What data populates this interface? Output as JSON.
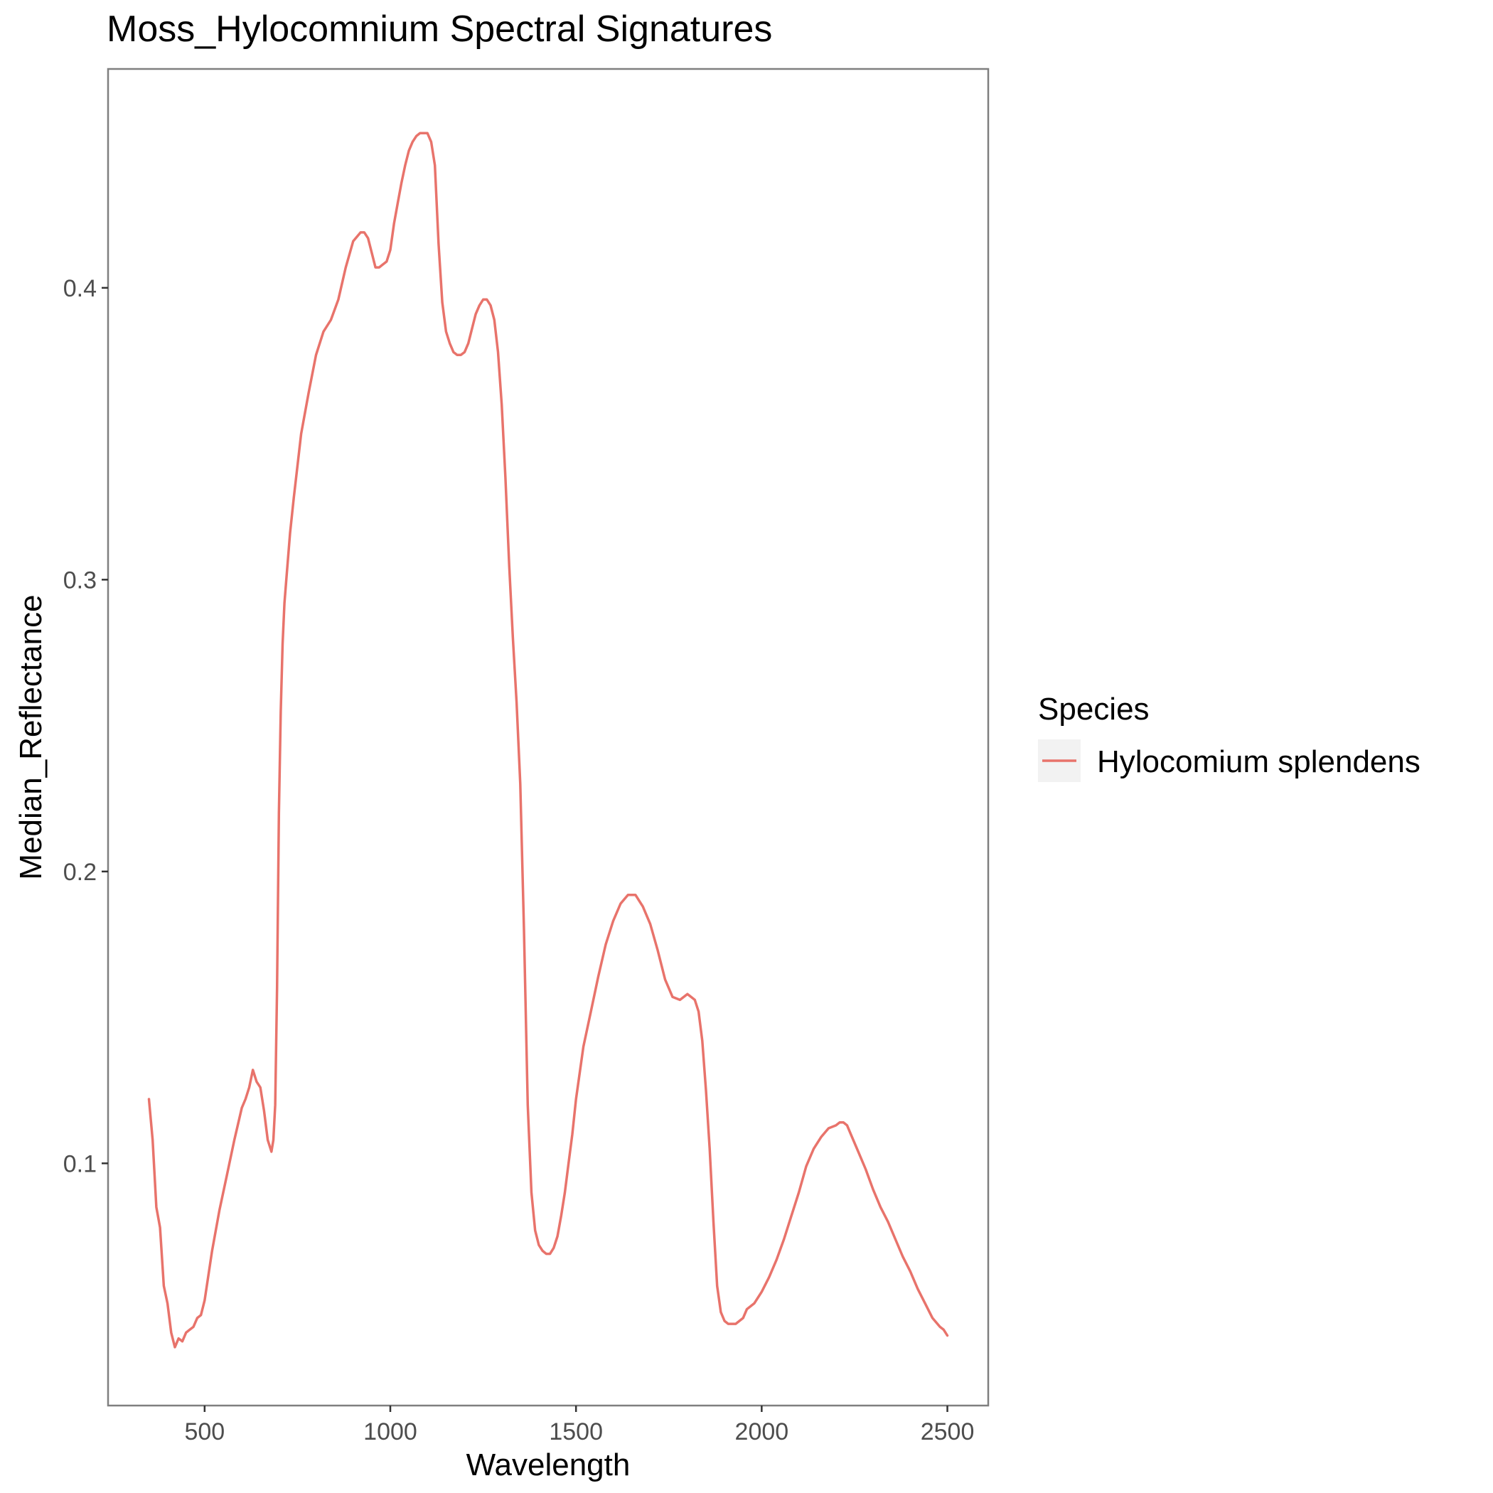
{
  "chart_data": {
    "type": "line",
    "title": "Moss_Hylocomnium Spectral Signatures",
    "xlabel": "Wavelength",
    "ylabel": "Median_Reflectance",
    "xlim": [
      240,
      2610
    ],
    "ylim": [
      0.017,
      0.475
    ],
    "x_ticks": [
      500,
      1000,
      1500,
      2000,
      2500
    ],
    "x_tick_labels": [
      "500",
      "1000",
      "1500",
      "2000",
      "2500"
    ],
    "y_ticks": [
      0.1,
      0.2,
      0.3,
      0.4
    ],
    "y_tick_labels": [
      "0.1",
      "0.2",
      "0.3",
      "0.4"
    ],
    "grid": false,
    "legend": {
      "title": "Species",
      "position": "right"
    },
    "series": [
      {
        "name": "Hylocomium splendens",
        "color": "#e8736b",
        "x": [
          350,
          360,
          370,
          380,
          390,
          400,
          410,
          420,
          430,
          440,
          450,
          460,
          470,
          480,
          490,
          500,
          520,
          540,
          560,
          580,
          600,
          610,
          620,
          630,
          640,
          650,
          660,
          670,
          680,
          685,
          690,
          695,
          700,
          705,
          710,
          715,
          720,
          730,
          740,
          750,
          760,
          780,
          800,
          820,
          840,
          860,
          880,
          900,
          920,
          930,
          940,
          950,
          960,
          970,
          980,
          990,
          1000,
          1010,
          1020,
          1030,
          1040,
          1050,
          1060,
          1070,
          1080,
          1090,
          1100,
          1110,
          1120,
          1130,
          1140,
          1150,
          1160,
          1170,
          1180,
          1190,
          1200,
          1210,
          1220,
          1230,
          1240,
          1250,
          1260,
          1270,
          1280,
          1290,
          1300,
          1310,
          1320,
          1330,
          1340,
          1350,
          1360,
          1370,
          1380,
          1390,
          1400,
          1410,
          1420,
          1430,
          1440,
          1450,
          1460,
          1470,
          1480,
          1490,
          1500,
          1520,
          1540,
          1560,
          1580,
          1600,
          1620,
          1640,
          1660,
          1680,
          1700,
          1720,
          1740,
          1760,
          1780,
          1800,
          1810,
          1820,
          1830,
          1840,
          1850,
          1860,
          1870,
          1880,
          1890,
          1900,
          1910,
          1920,
          1930,
          1940,
          1950,
          1960,
          1980,
          2000,
          2020,
          2040,
          2060,
          2080,
          2100,
          2120,
          2140,
          2160,
          2180,
          2200,
          2210,
          2220,
          2230,
          2240,
          2260,
          2280,
          2300,
          2320,
          2340,
          2360,
          2380,
          2400,
          2420,
          2440,
          2460,
          2480,
          2490,
          2500
        ],
        "y": [
          0.122,
          0.108,
          0.085,
          0.078,
          0.058,
          0.052,
          0.042,
          0.037,
          0.04,
          0.039,
          0.042,
          0.043,
          0.044,
          0.047,
          0.048,
          0.053,
          0.07,
          0.084,
          0.096,
          0.108,
          0.119,
          0.122,
          0.126,
          0.132,
          0.128,
          0.126,
          0.118,
          0.108,
          0.104,
          0.108,
          0.12,
          0.16,
          0.22,
          0.255,
          0.278,
          0.292,
          0.3,
          0.316,
          0.328,
          0.339,
          0.35,
          0.364,
          0.377,
          0.385,
          0.389,
          0.396,
          0.407,
          0.416,
          0.419,
          0.419,
          0.417,
          0.412,
          0.407,
          0.407,
          0.408,
          0.409,
          0.413,
          0.422,
          0.429,
          0.436,
          0.442,
          0.447,
          0.45,
          0.452,
          0.453,
          0.453,
          0.453,
          0.45,
          0.442,
          0.415,
          0.395,
          0.385,
          0.381,
          0.378,
          0.377,
          0.377,
          0.378,
          0.381,
          0.386,
          0.391,
          0.394,
          0.396,
          0.396,
          0.394,
          0.389,
          0.378,
          0.36,
          0.335,
          0.305,
          0.28,
          0.258,
          0.23,
          0.18,
          0.12,
          0.09,
          0.077,
          0.072,
          0.07,
          0.069,
          0.069,
          0.071,
          0.075,
          0.082,
          0.09,
          0.1,
          0.11,
          0.122,
          0.14,
          0.152,
          0.164,
          0.175,
          0.183,
          0.189,
          0.192,
          0.192,
          0.188,
          0.182,
          0.173,
          0.163,
          0.157,
          0.156,
          0.158,
          0.157,
          0.156,
          0.152,
          0.142,
          0.125,
          0.105,
          0.08,
          0.058,
          0.049,
          0.046,
          0.045,
          0.045,
          0.045,
          0.046,
          0.047,
          0.05,
          0.052,
          0.056,
          0.061,
          0.067,
          0.074,
          0.082,
          0.09,
          0.099,
          0.105,
          0.109,
          0.112,
          0.113,
          0.114,
          0.114,
          0.113,
          0.11,
          0.104,
          0.098,
          0.091,
          0.085,
          0.08,
          0.074,
          0.068,
          0.063,
          0.057,
          0.052,
          0.047,
          0.044,
          0.043,
          0.041
        ]
      }
    ]
  }
}
